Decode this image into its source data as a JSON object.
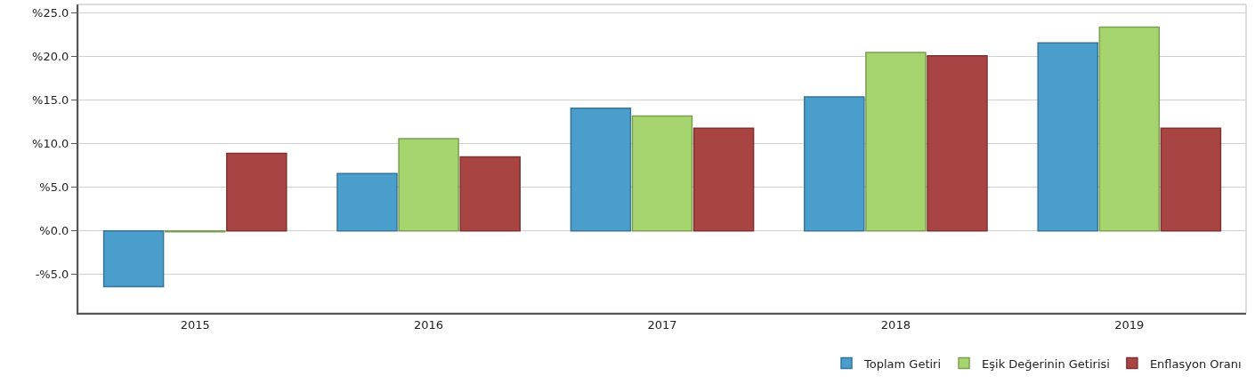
{
  "chart_data": {
    "type": "bar",
    "categories": [
      "2015",
      "2016",
      "2017",
      "2018",
      "2019"
    ],
    "series": [
      {
        "name": "Toplam Getiri",
        "color": "#4a9ecb",
        "values": [
          -6.4,
          6.6,
          14.1,
          15.4,
          21.6
        ]
      },
      {
        "name": "Eşik Değerinin Getirisi",
        "color": "#a6d46e",
        "values": [
          -0.1,
          10.6,
          13.2,
          20.5,
          23.4
        ]
      },
      {
        "name": "Enflasyon Oranı",
        "color": "#a84442",
        "values": [
          8.9,
          8.5,
          11.8,
          20.1,
          11.8
        ]
      }
    ],
    "ylim": [
      -9.4,
      26
    ],
    "yticks": [
      {
        "value": -5,
        "label": "-%5.0"
      },
      {
        "value": 0,
        "label": "%0.0"
      },
      {
        "value": 5,
        "label": "%5.0"
      },
      {
        "value": 10,
        "label": "%10.0"
      },
      {
        "value": 15,
        "label": "%15.0"
      },
      {
        "value": 20,
        "label": "%20.0"
      },
      {
        "value": 25,
        "label": "%25.0"
      }
    ],
    "grid": "y",
    "legend": "bottom right"
  }
}
